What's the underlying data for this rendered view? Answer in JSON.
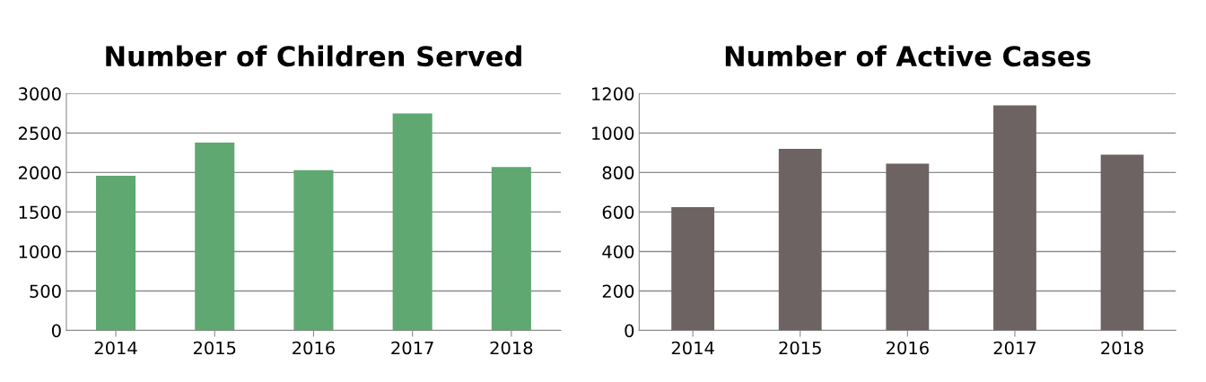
{
  "chart_data": [
    {
      "type": "bar",
      "title": "Number of Children Served",
      "categories": [
        "2014",
        "2015",
        "2016",
        "2017",
        "2018"
      ],
      "values": [
        1960,
        2380,
        2030,
        2750,
        2070
      ],
      "color": "#5fa872",
      "ylim": [
        0,
        3000
      ],
      "yticks": [
        0,
        500,
        1000,
        1500,
        2000,
        2500,
        3000
      ],
      "grid": "y"
    },
    {
      "type": "bar",
      "title": "Number of Active Cases",
      "categories": [
        "2014",
        "2015",
        "2016",
        "2017",
        "2018"
      ],
      "values": [
        625,
        920,
        845,
        1140,
        890
      ],
      "color": "#6e6363",
      "ylim": [
        0,
        1200
      ],
      "yticks": [
        0,
        200,
        400,
        600,
        800,
        1000,
        1200
      ],
      "grid": "y"
    }
  ]
}
